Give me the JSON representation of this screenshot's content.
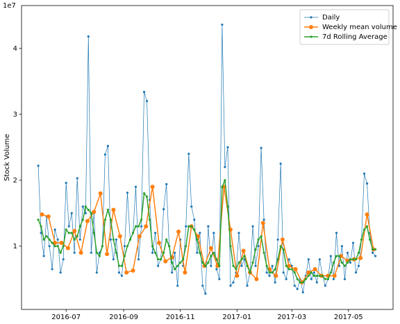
{
  "chart_data": {
    "type": "line",
    "ylabel": "Stock Volume",
    "y_offset_label": "1e7",
    "xlim": [
      -18,
      382
    ],
    "xticks": [
      {
        "value": 30,
        "label": "2016-07"
      },
      {
        "value": 92,
        "label": "2016-09"
      },
      {
        "value": 153,
        "label": "2016-11"
      },
      {
        "value": 214,
        "label": "2017-01"
      },
      {
        "value": 273,
        "label": "2017-03"
      },
      {
        "value": 334,
        "label": "2017-05"
      }
    ],
    "ylim": [
      0.04,
      4.65
    ],
    "yticks": [
      1,
      2,
      3,
      4
    ],
    "legend": "upper right",
    "series": [
      {
        "name": "Daily",
        "color": "#1f77b4",
        "marker_size": 1.6,
        "line_width": 0.7,
        "x": [
          0,
          3,
          6,
          9,
          12,
          15,
          18,
          21,
          24,
          27,
          30,
          33,
          36,
          39,
          42,
          45,
          48,
          51,
          54,
          57,
          60,
          63,
          66,
          69,
          72,
          75,
          78,
          81,
          84,
          87,
          90,
          93,
          96,
          99,
          102,
          105,
          108,
          111,
          114,
          117,
          120,
          123,
          126,
          129,
          132,
          135,
          138,
          141,
          144,
          147,
          150,
          153,
          156,
          159,
          162,
          165,
          168,
          171,
          174,
          177,
          180,
          183,
          186,
          189,
          192,
          195,
          198,
          201,
          204,
          207,
          210,
          213,
          216,
          219,
          222,
          225,
          228,
          231,
          234,
          237,
          240,
          243,
          246,
          249,
          252,
          255,
          258,
          261,
          264,
          267,
          270,
          273,
          276,
          279,
          282,
          285,
          288,
          291,
          294,
          297,
          300,
          303,
          306,
          309,
          312,
          315,
          318,
          321,
          324,
          327,
          330,
          333,
          336,
          339,
          342,
          345,
          348,
          351,
          354,
          357,
          360,
          363
        ],
        "values": [
          2.22,
          1.2,
          0.85,
          1.45,
          1.0,
          0.65,
          1.25,
          1.1,
          0.6,
          0.8,
          1.96,
          1.3,
          1.5,
          0.9,
          2.03,
          1.1,
          1.6,
          1.5,
          4.18,
          0.9,
          1.5,
          0.6,
          0.9,
          1.0,
          2.39,
          2.52,
          1.1,
          0.8,
          1.1,
          0.6,
          0.55,
          1.0,
          1.81,
          1.1,
          1.2,
          1.9,
          0.8,
          1.3,
          3.34,
          3.2,
          1.7,
          0.9,
          1.2,
          0.7,
          0.8,
          1.56,
          1.94,
          1.0,
          0.6,
          0.9,
          0.4,
          1.1,
          0.7,
          1.3,
          2.4,
          1.6,
          1.4,
          0.9,
          1.2,
          0.4,
          0.28,
          1.3,
          0.7,
          1.2,
          0.65,
          0.5,
          4.36,
          2.2,
          2.5,
          0.4,
          0.45,
          0.6,
          1.2,
          0.7,
          0.8,
          0.4,
          0.6,
          1.3,
          0.7,
          1.0,
          2.49,
          1.4,
          0.6,
          0.55,
          0.7,
          0.45,
          1.1,
          2.25,
          0.6,
          0.5,
          0.8,
          0.7,
          0.4,
          0.35,
          0.5,
          0.3,
          0.55,
          0.8,
          0.5,
          0.6,
          0.45,
          0.8,
          0.55,
          0.4,
          0.5,
          0.85,
          0.5,
          1.2,
          0.7,
          1.0,
          0.5,
          0.9,
          0.75,
          1.05,
          0.6,
          0.7,
          1.1,
          2.1,
          1.95,
          1.2,
          0.9,
          0.85
        ]
      },
      {
        "name": "Weekly mean volume",
        "color": "#ff7f0e",
        "marker_size": 3,
        "line_width": 1.5,
        "x": [
          4,
          11,
          18,
          25,
          32,
          39,
          46,
          53,
          60,
          67,
          74,
          81,
          88,
          95,
          102,
          109,
          116,
          123,
          130,
          137,
          144,
          151,
          158,
          165,
          172,
          179,
          186,
          193,
          200,
          207,
          214,
          221,
          228,
          235,
          242,
          249,
          256,
          263,
          270,
          277,
          284,
          291,
          298,
          305,
          312,
          319,
          326,
          333,
          340,
          347,
          354,
          361
        ],
        "values": [
          1.48,
          1.45,
          1.05,
          1.05,
          0.97,
          1.23,
          0.9,
          1.38,
          1.52,
          1.8,
          0.88,
          1.55,
          1.15,
          0.6,
          0.63,
          1.15,
          1.3,
          1.9,
          1.05,
          0.77,
          0.83,
          1.22,
          0.6,
          1.3,
          1.15,
          0.7,
          0.97,
          0.7,
          1.9,
          1.25,
          0.55,
          0.93,
          0.6,
          0.5,
          1.35,
          0.65,
          0.55,
          1.1,
          0.7,
          0.65,
          0.45,
          0.6,
          0.65,
          0.55,
          0.55,
          0.55,
          0.85,
          0.78,
          0.8,
          0.82,
          1.48,
          0.95
        ]
      },
      {
        "name": "7d Rolling Average",
        "color": "#2ca02c",
        "marker_size": 1.6,
        "line_width": 1.5,
        "x": [
          0,
          3,
          6,
          9,
          12,
          15,
          18,
          21,
          24,
          27,
          30,
          33,
          36,
          39,
          42,
          45,
          48,
          51,
          54,
          57,
          60,
          63,
          66,
          69,
          72,
          75,
          78,
          81,
          84,
          87,
          90,
          93,
          96,
          99,
          102,
          105,
          108,
          111,
          114,
          117,
          120,
          123,
          126,
          129,
          132,
          135,
          138,
          141,
          144,
          147,
          150,
          153,
          156,
          159,
          162,
          165,
          168,
          171,
          174,
          177,
          180,
          183,
          186,
          189,
          192,
          195,
          198,
          201,
          204,
          207,
          210,
          213,
          216,
          219,
          222,
          225,
          228,
          231,
          234,
          237,
          240,
          243,
          246,
          249,
          252,
          255,
          258,
          261,
          264,
          267,
          270,
          273,
          276,
          279,
          282,
          285,
          288,
          291,
          294,
          297,
          300,
          303,
          306,
          309,
          312,
          315,
          318,
          321,
          324,
          327,
          330,
          333,
          336,
          339,
          342,
          345,
          348,
          351,
          354,
          357,
          360,
          363
        ],
        "values": [
          1.4,
          1.3,
          1.1,
          1.15,
          1.1,
          1.05,
          1.0,
          1.0,
          0.9,
          1.0,
          1.25,
          1.2,
          1.2,
          1.1,
          1.15,
          1.3,
          1.4,
          1.6,
          1.55,
          1.5,
          1.2,
          0.9,
          0.85,
          1.0,
          1.4,
          1.55,
          1.4,
          1.1,
          0.9,
          0.7,
          0.7,
          0.85,
          1.0,
          1.1,
          1.2,
          1.3,
          1.3,
          1.4,
          1.8,
          1.75,
          1.4,
          1.0,
          0.9,
          0.8,
          0.8,
          0.9,
          1.1,
          1.0,
          0.75,
          0.65,
          0.7,
          0.75,
          0.8,
          1.0,
          1.3,
          1.3,
          1.25,
          1.1,
          0.9,
          0.75,
          0.7,
          0.75,
          0.85,
          0.9,
          0.8,
          0.7,
          1.9,
          2.0,
          1.6,
          1.0,
          0.7,
          0.65,
          0.75,
          0.8,
          0.85,
          0.7,
          0.6,
          0.75,
          0.95,
          1.1,
          1.15,
          0.9,
          0.7,
          0.6,
          0.6,
          0.65,
          0.8,
          1.0,
          0.95,
          0.7,
          0.65,
          0.65,
          0.6,
          0.5,
          0.45,
          0.45,
          0.5,
          0.55,
          0.6,
          0.55,
          0.55,
          0.55,
          0.55,
          0.5,
          0.5,
          0.6,
          0.75,
          0.85,
          0.85,
          0.75,
          0.7,
          0.75,
          0.8,
          0.8,
          0.8,
          0.9,
          1.1,
          1.25,
          1.3,
          1.1,
          0.95,
          0.95
        ]
      }
    ]
  }
}
